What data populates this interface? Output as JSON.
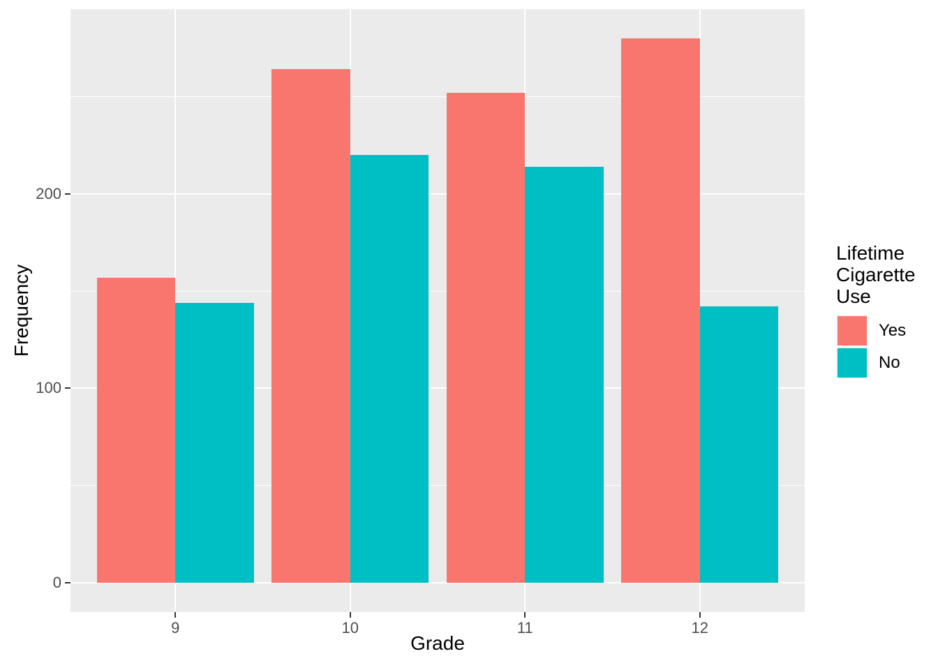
{
  "chart_data": {
    "type": "bar",
    "title": "",
    "xlabel": "Grade",
    "ylabel": "Frequency",
    "categories": [
      "9",
      "10",
      "11",
      "12"
    ],
    "series": [
      {
        "name": "Yes",
        "color": "#F8766D",
        "values": [
          157,
          264,
          252,
          280
        ]
      },
      {
        "name": "No",
        "color": "#00BFC4",
        "values": [
          144,
          220,
          214,
          142
        ]
      }
    ],
    "legend_title": "Lifetime Cigarette Use",
    "legend_position": "right",
    "legend_labels": [
      "Yes",
      "No"
    ],
    "y_ticks": [
      0,
      100,
      200
    ],
    "y_minor_ticks": [
      50,
      150,
      250
    ],
    "ylim": [
      -15,
      295
    ],
    "bar_group_width": 0.9,
    "grid": true,
    "panel_bg": "#EBEBEB",
    "grid_color": "#FFFFFF",
    "axis_text_color": "#4D4D4D",
    "axis_title_color": "#000000"
  }
}
